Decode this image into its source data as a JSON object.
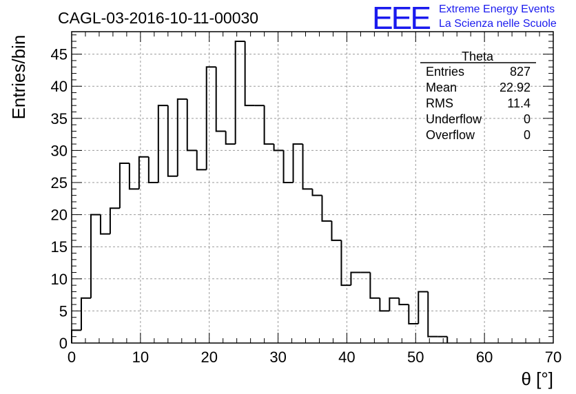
{
  "header": {
    "title": "CAGL-03-2016-10-11-00030",
    "logo_text": "EEE",
    "brand_line1": "Extreme Energy Events",
    "brand_line2": "La Scienza nelle Scuole",
    "brand_color": "#1a1aee"
  },
  "stats_box": {
    "title": "Theta",
    "rows": [
      {
        "label": "Entries",
        "value": "827"
      },
      {
        "label": "Mean",
        "value": "22.92"
      },
      {
        "label": "RMS",
        "value": "11.4"
      },
      {
        "label": "Underflow",
        "value": "0"
      },
      {
        "label": "Overflow",
        "value": "0"
      }
    ]
  },
  "chart_data": {
    "type": "bar",
    "histogram": true,
    "xlabel": "θ [°]",
    "ylabel": "Entries/bin",
    "xlim": [
      0,
      70
    ],
    "ylim": [
      0,
      48.5
    ],
    "xticks": [
      0,
      10,
      20,
      30,
      40,
      50,
      60,
      70
    ],
    "yticks": [
      0,
      5,
      10,
      15,
      20,
      25,
      30,
      35,
      40,
      45
    ],
    "grid": true,
    "line_color": "#000000",
    "bin_width": 1.4,
    "bin_start": 0,
    "values": [
      2,
      7,
      20,
      17,
      21,
      28,
      24,
      29,
      25,
      37,
      26,
      38,
      30,
      27,
      43,
      33,
      31,
      47,
      37,
      37,
      31,
      30,
      25,
      31,
      24,
      23,
      19,
      16,
      9,
      11,
      11,
      7,
      5,
      7,
      6,
      3,
      8,
      1,
      1
    ]
  }
}
